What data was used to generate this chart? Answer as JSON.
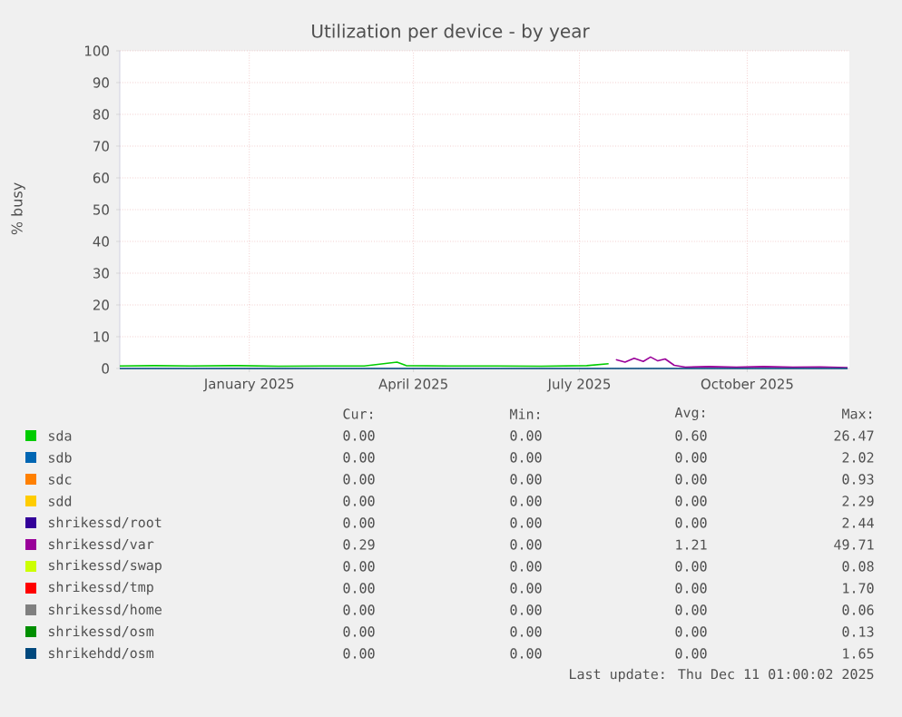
{
  "chart_data": {
    "type": "line",
    "title": "Utilization per device - by year",
    "ylabel": "% busy",
    "xlim": [
      "2024-11-06",
      "2025-12-11"
    ],
    "xticks": [
      {
        "value": "2025-01-16",
        "label": "January 2025"
      },
      {
        "value": "2025-04-16",
        "label": "April 2025"
      },
      {
        "value": "2025-07-16",
        "label": "July 2025"
      },
      {
        "value": "2025-10-16",
        "label": "October 2025"
      }
    ],
    "ylim": [
      0,
      100
    ],
    "yticks": [
      0,
      10,
      20,
      30,
      40,
      50,
      60,
      70,
      80,
      90,
      100
    ],
    "grid": true,
    "legend": "bottom",
    "series": [
      {
        "name": "sda",
        "color": "#00cc00",
        "x": [
          "2024-11-06",
          "2024-11-25",
          "2024-12-15",
          "2025-01-10",
          "2025-02-01",
          "2025-02-25",
          "2025-03-20",
          "2025-04-07",
          "2025-04-12",
          "2025-05-05",
          "2025-06-01",
          "2025-06-25",
          "2025-07-20",
          "2025-08-01"
        ],
        "values": [
          0.8,
          0.9,
          0.8,
          0.9,
          0.7,
          0.8,
          0.8,
          2.0,
          0.9,
          0.8,
          0.8,
          0.7,
          0.9,
          1.5
        ]
      },
      {
        "name": "sdb",
        "color": "#0066b3"
      },
      {
        "name": "sdc",
        "color": "#ff8000"
      },
      {
        "name": "sdd",
        "color": "#ffcc00"
      },
      {
        "name": "shrikessd/root",
        "color": "#330099"
      },
      {
        "name": "shrikessd/var",
        "color": "#990099",
        "x": [
          "2025-08-05",
          "2025-08-10",
          "2025-08-15",
          "2025-08-20",
          "2025-08-24",
          "2025-08-28",
          "2025-09-01",
          "2025-09-06",
          "2025-09-12",
          "2025-09-25",
          "2025-10-10",
          "2025-10-25",
          "2025-11-10",
          "2025-11-25",
          "2025-12-10"
        ],
        "values": [
          2.8,
          2.0,
          3.2,
          2.2,
          3.6,
          2.4,
          3.0,
          1.0,
          0.4,
          0.6,
          0.4,
          0.6,
          0.4,
          0.5,
          0.3
        ]
      },
      {
        "name": "shrikessd/swap",
        "color": "#ccff00"
      },
      {
        "name": "shrikessd/tmp",
        "color": "#ff0000"
      },
      {
        "name": "shrikessd/home",
        "color": "#808080"
      },
      {
        "name": "shrikessd/osm",
        "color": "#008f00"
      },
      {
        "name": "shrikehdd/osm",
        "color": "#00487d",
        "x": [
          "2024-11-06",
          "2025-12-10"
        ],
        "values": [
          0,
          0
        ]
      }
    ],
    "annotations": [
      "Cur:",
      "Min:",
      "Avg:",
      "Max:",
      "0.00",
      "0.00",
      "0.60",
      "26.47",
      "0.00",
      "0.00",
      "0.00",
      "2.02",
      "0.00",
      "0.00",
      "0.00",
      "0.93",
      "0.00",
      "0.00",
      "0.00",
      "2.29",
      "0.00",
      "0.00",
      "0.00",
      "2.44",
      "0.29",
      "0.00",
      "1.21",
      "49.71",
      "0.00",
      "0.00",
      "0.00",
      "0.08",
      "0.00",
      "0.00",
      "0.00",
      "1.70",
      "0.00",
      "0.00",
      "0.00",
      "0.06",
      "0.00",
      "0.00",
      "0.00",
      "0.13",
      "0.00",
      "0.00",
      "0.00",
      "1.65",
      "Last update: Thu Dec 11 01:00:02 2025"
    ]
  }
}
